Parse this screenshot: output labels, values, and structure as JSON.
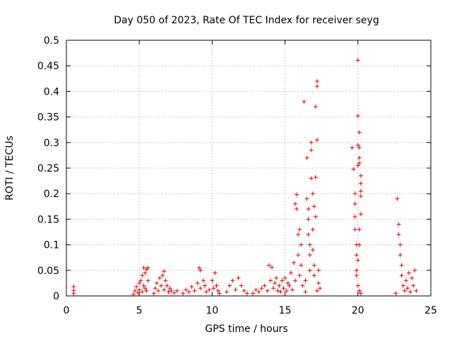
{
  "chart_data": {
    "type": "scatter",
    "title": "Day 050 of 2023, Rate Of TEC Index for receiver seyg",
    "xlabel": "GPS time / hours",
    "ylabel": "ROTI / TECUs",
    "xlim": [
      0,
      25
    ],
    "ylim": [
      0,
      0.5
    ],
    "xticks": [
      0,
      5,
      10,
      15,
      20,
      25
    ],
    "yticks": [
      0,
      0.05,
      0.1,
      0.15,
      0.2,
      0.25,
      0.3,
      0.35,
      0.4,
      0.45,
      0.5
    ],
    "x_tick_labels": [
      "0",
      "5",
      "10",
      "15",
      "20",
      "25"
    ],
    "y_tick_labels": [
      "0",
      "0.05",
      "0.1",
      "0.15",
      "0.2",
      "0.25",
      "0.3",
      "0.35",
      "0.4",
      "0.45",
      "0.5"
    ],
    "grid": true,
    "marker": "+",
    "marker_color": "#e00000",
    "points": [
      [
        0.5,
        0.005
      ],
      [
        0.5,
        0.01
      ],
      [
        0.5,
        0.018
      ],
      [
        4.6,
        0.003
      ],
      [
        4.7,
        0.01
      ],
      [
        4.8,
        0.018
      ],
      [
        4.9,
        0.006
      ],
      [
        5.0,
        0.025
      ],
      [
        5.0,
        0.012
      ],
      [
        5.1,
        0.03
      ],
      [
        5.2,
        0.04
      ],
      [
        5.2,
        0.008
      ],
      [
        5.3,
        0.02
      ],
      [
        5.3,
        0.055
      ],
      [
        5.4,
        0.015
      ],
      [
        5.4,
        0.045
      ],
      [
        5.5,
        0.052
      ],
      [
        5.5,
        0.01
      ],
      [
        5.6,
        0.03
      ],
      [
        5.6,
        0.055
      ],
      [
        6.0,
        0.005
      ],
      [
        6.1,
        0.015
      ],
      [
        6.2,
        0.025
      ],
      [
        6.3,
        0.01
      ],
      [
        6.4,
        0.035
      ],
      [
        6.5,
        0.02
      ],
      [
        6.6,
        0.04
      ],
      [
        6.7,
        0.048
      ],
      [
        6.7,
        0.012
      ],
      [
        6.8,
        0.03
      ],
      [
        6.9,
        0.02
      ],
      [
        7.0,
        0.008
      ],
      [
        7.1,
        0.015
      ],
      [
        7.2,
        0.01
      ],
      [
        7.4,
        0.006
      ],
      [
        7.6,
        0.01
      ],
      [
        8.0,
        0.005
      ],
      [
        8.2,
        0.012
      ],
      [
        8.4,
        0.008
      ],
      [
        8.6,
        0.018
      ],
      [
        8.8,
        0.01
      ],
      [
        9.0,
        0.025
      ],
      [
        9.1,
        0.055
      ],
      [
        9.2,
        0.05
      ],
      [
        9.2,
        0.015
      ],
      [
        9.4,
        0.03
      ],
      [
        9.5,
        0.02
      ],
      [
        9.6,
        0.008
      ],
      [
        9.8,
        0.012
      ],
      [
        10.0,
        0.03
      ],
      [
        10.1,
        0.015
      ],
      [
        10.2,
        0.045
      ],
      [
        10.3,
        0.02
      ],
      [
        10.4,
        0.01
      ],
      [
        10.5,
        0.005
      ],
      [
        11.0,
        0.008
      ],
      [
        11.2,
        0.02
      ],
      [
        11.4,
        0.03
      ],
      [
        11.6,
        0.012
      ],
      [
        11.8,
        0.035
      ],
      [
        12.0,
        0.02
      ],
      [
        12.2,
        0.01
      ],
      [
        12.4,
        0.005
      ],
      [
        12.8,
        0.005
      ],
      [
        13.0,
        0.012
      ],
      [
        13.2,
        0.008
      ],
      [
        13.4,
        0.015
      ],
      [
        13.6,
        0.02
      ],
      [
        13.8,
        0.01
      ],
      [
        13.9,
        0.06
      ],
      [
        14.0,
        0.03
      ],
      [
        14.1,
        0.056
      ],
      [
        14.2,
        0.015
      ],
      [
        14.3,
        0.025
      ],
      [
        14.4,
        0.035
      ],
      [
        14.5,
        0.01
      ],
      [
        14.6,
        0.02
      ],
      [
        14.7,
        0.008
      ],
      [
        14.8,
        0.03
      ],
      [
        14.9,
        0.015
      ],
      [
        15.0,
        0.035
      ],
      [
        15.1,
        0.01
      ],
      [
        15.2,
        0.025
      ],
      [
        15.3,
        0.02
      ],
      [
        15.4,
        0.045
      ],
      [
        15.5,
        0.012
      ],
      [
        15.6,
        0.065
      ],
      [
        15.7,
        0.03
      ],
      [
        15.7,
        0.18
      ],
      [
        15.8,
        0.198
      ],
      [
        15.8,
        0.17
      ],
      [
        15.9,
        0.12
      ],
      [
        15.9,
        0.08
      ],
      [
        16.0,
        0.13
      ],
      [
        16.0,
        0.04
      ],
      [
        16.1,
        0.06
      ],
      [
        16.1,
        0.1
      ],
      [
        16.2,
        0.02
      ],
      [
        16.3,
        0.38
      ],
      [
        16.4,
        0.03
      ],
      [
        16.5,
        0.27
      ],
      [
        16.5,
        0.19
      ],
      [
        16.6,
        0.17
      ],
      [
        16.6,
        0.15
      ],
      [
        16.6,
        0.12
      ],
      [
        16.7,
        0.1
      ],
      [
        16.7,
        0.08
      ],
      [
        16.7,
        0.05
      ],
      [
        16.8,
        0.23
      ],
      [
        16.8,
        0.3
      ],
      [
        16.8,
        0.285
      ],
      [
        16.9,
        0.2
      ],
      [
        16.9,
        0.13
      ],
      [
        16.9,
        0.09
      ],
      [
        17.0,
        0.06
      ],
      [
        17.0,
        0.04
      ],
      [
        17.0,
        0.175
      ],
      [
        17.1,
        0.155
      ],
      [
        17.1,
        0.232
      ],
      [
        17.1,
        0.37
      ],
      [
        17.2,
        0.42
      ],
      [
        17.2,
        0.41
      ],
      [
        17.2,
        0.305
      ],
      [
        17.3,
        0.05
      ],
      [
        17.3,
        0.025
      ],
      [
        17.4,
        0.015
      ],
      [
        17.2,
        0.01
      ],
      [
        16.4,
        0.008
      ],
      [
        19.6,
        0.29
      ],
      [
        19.7,
        0.248
      ],
      [
        19.8,
        0.2
      ],
      [
        19.8,
        0.18
      ],
      [
        19.8,
        0.155
      ],
      [
        19.8,
        0.13
      ],
      [
        19.9,
        0.1
      ],
      [
        19.9,
        0.08
      ],
      [
        19.9,
        0.05
      ],
      [
        19.9,
        0.04
      ],
      [
        20.0,
        0.461
      ],
      [
        20.0,
        0.352
      ],
      [
        20.0,
        0.295
      ],
      [
        20.0,
        0.255
      ],
      [
        20.1,
        0.32
      ],
      [
        20.1,
        0.29
      ],
      [
        20.1,
        0.27
      ],
      [
        20.1,
        0.26
      ],
      [
        20.2,
        0.235
      ],
      [
        20.2,
        0.22
      ],
      [
        20.2,
        0.205
      ],
      [
        20.2,
        0.195
      ],
      [
        20.2,
        0.16
      ],
      [
        20.1,
        0.13
      ],
      [
        20.1,
        0.1
      ],
      [
        20.0,
        0.07
      ],
      [
        20.0,
        0.02
      ],
      [
        20.1,
        0.01
      ],
      [
        20.2,
        0.005
      ],
      [
        22.6,
        0.005
      ],
      [
        22.7,
        0.19
      ],
      [
        22.8,
        0.14
      ],
      [
        22.8,
        0.12
      ],
      [
        22.9,
        0.1
      ],
      [
        22.9,
        0.08
      ],
      [
        23.0,
        0.06
      ],
      [
        23.0,
        0.04
      ],
      [
        23.1,
        0.02
      ],
      [
        23.2,
        0.01
      ],
      [
        23.3,
        0.03
      ],
      [
        23.4,
        0.015
      ],
      [
        23.5,
        0.045
      ],
      [
        23.6,
        0.008
      ],
      [
        23.7,
        0.035
      ],
      [
        23.8,
        0.02
      ],
      [
        23.9,
        0.05
      ],
      [
        24.0,
        0.01
      ]
    ]
  }
}
